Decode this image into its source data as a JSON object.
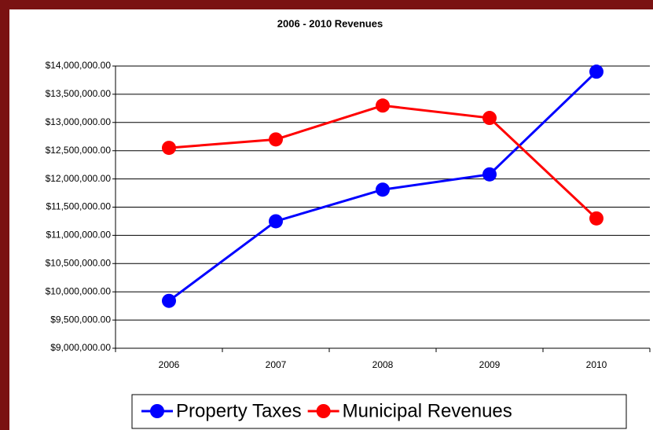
{
  "chart_data": {
    "type": "line",
    "title": "2006 - 2010 Revenues",
    "categories": [
      "2006",
      "2007",
      "2008",
      "2009",
      "2010"
    ],
    "series": [
      {
        "name": "Property Taxes",
        "color": "#0000ff",
        "values": [
          9840000,
          11250000,
          11810000,
          12080000,
          13900000
        ]
      },
      {
        "name": "Municipal Revenues",
        "color": "#ff0000",
        "values": [
          12550000,
          12700000,
          13300000,
          13080000,
          11300000
        ]
      }
    ],
    "ylim": [
      9000000,
      14000000
    ],
    "yticks": [
      {
        "value": 9000000,
        "label": "$9,000,000.00"
      },
      {
        "value": 9500000,
        "label": "$9,500,000.00"
      },
      {
        "value": 10000000,
        "label": "$10,000,000.00"
      },
      {
        "value": 10500000,
        "label": "$10,500,000.00"
      },
      {
        "value": 11000000,
        "label": "$11,000,000.00"
      },
      {
        "value": 11500000,
        "label": "$11,500,000.00"
      },
      {
        "value": 12000000,
        "label": "$12,000,000.00"
      },
      {
        "value": 12500000,
        "label": "$12,500,000.00"
      },
      {
        "value": 13000000,
        "label": "$13,000,000.00"
      },
      {
        "value": 13500000,
        "label": "$13,500,000.00"
      },
      {
        "value": 14000000,
        "label": "$14,000,000.00"
      }
    ],
    "grid": true,
    "legend": "bottom"
  }
}
